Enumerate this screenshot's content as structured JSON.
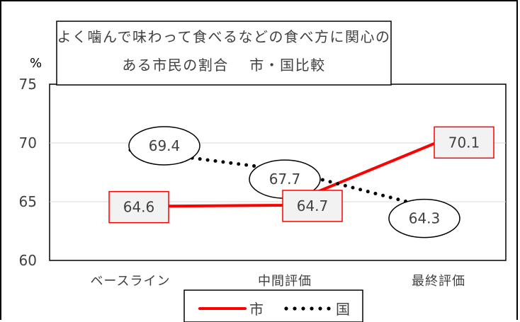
{
  "chart_data": {
    "type": "line",
    "title_line1": "よく噛んで味わって食べるなどの食べ方に関心の",
    "title_line2": "ある市民の割合　 市・国比較",
    "ylabel": "%",
    "ylim": [
      60,
      75
    ],
    "yticks": [
      "75",
      "70",
      "65",
      "60"
    ],
    "categories": [
      "ベースライン",
      "中間評価",
      "最終評価"
    ],
    "grid": true,
    "legend_placement": "bottom",
    "series": [
      {
        "name": "市",
        "values": [
          64.6,
          64.7,
          70.1
        ],
        "labels": [
          "64.6",
          "64.7",
          "70.1"
        ],
        "color": "#ff0000",
        "style": "solid"
      },
      {
        "name": "国",
        "values": [
          69.4,
          67.7,
          64.3
        ],
        "labels": [
          "69.4",
          "67.7",
          "64.3"
        ],
        "color": "#000000",
        "style": "dotted"
      }
    ]
  }
}
